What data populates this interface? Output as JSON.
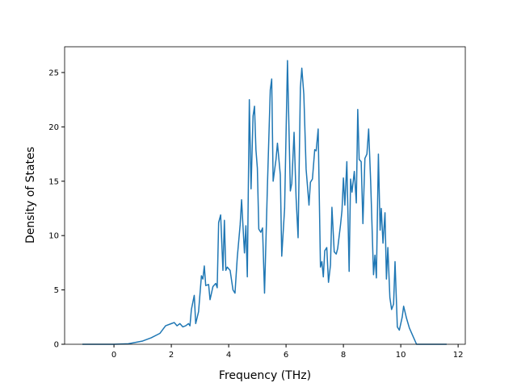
{
  "chart_data": {
    "type": "line",
    "xlabel": "Frequency (THz)",
    "ylabel": "Density of States",
    "x": [
      -1.1,
      0,
      0.5,
      1.0,
      1.3,
      1.6,
      1.8,
      2.0,
      2.1,
      2.2,
      2.3,
      2.4,
      2.5,
      2.6,
      2.65,
      2.7,
      2.8,
      2.85,
      2.95,
      3.05,
      3.1,
      3.15,
      3.2,
      3.3,
      3.35,
      3.45,
      3.55,
      3.6,
      3.65,
      3.72,
      3.8,
      3.85,
      3.9,
      3.95,
      4.05,
      4.15,
      4.22,
      4.3,
      4.4,
      4.45,
      4.5,
      4.55,
      4.6,
      4.65,
      4.72,
      4.78,
      4.85,
      4.9,
      4.95,
      5.0,
      5.05,
      5.12,
      5.18,
      5.25,
      5.35,
      5.45,
      5.5,
      5.55,
      5.65,
      5.7,
      5.8,
      5.85,
      5.95,
      6.05,
      6.15,
      6.2,
      6.28,
      6.35,
      6.42,
      6.5,
      6.55,
      6.62,
      6.7,
      6.8,
      6.85,
      6.92,
      7.0,
      7.05,
      7.12,
      7.2,
      7.25,
      7.3,
      7.35,
      7.42,
      7.48,
      7.55,
      7.6,
      7.68,
      7.75,
      7.8,
      7.9,
      7.95,
      8.0,
      8.05,
      8.12,
      8.2,
      8.25,
      8.3,
      8.38,
      8.45,
      8.5,
      8.55,
      8.62,
      8.68,
      8.75,
      8.82,
      8.88,
      8.95,
      9.05,
      9.1,
      9.15,
      9.22,
      9.28,
      9.32,
      9.38,
      9.45,
      9.5,
      9.55,
      9.62,
      9.68,
      9.75,
      9.8,
      9.88,
      9.95,
      10.05,
      10.1,
      10.2,
      10.3,
      10.45,
      10.55,
      11.0,
      11.6
    ],
    "series": [
      {
        "color": "#1f77b4",
        "values": [
          0,
          0,
          0.05,
          0.3,
          0.6,
          1.0,
          1.7,
          1.9,
          2.0,
          1.7,
          1.9,
          1.6,
          1.7,
          1.9,
          1.7,
          3.2,
          4.5,
          1.9,
          3.0,
          6.3,
          6.0,
          7.2,
          5.4,
          5.5,
          4.1,
          5.3,
          5.6,
          5.2,
          11.2,
          11.9,
          6.8,
          11.4,
          6.8,
          7.1,
          6.8,
          5.0,
          4.7,
          8.0,
          11.0,
          13.3,
          10.8,
          8.4,
          10.9,
          6.2,
          22.5,
          14.3,
          21.0,
          21.9,
          17.9,
          16.2,
          10.6,
          10.3,
          10.7,
          4.7,
          14.5,
          23.4,
          24.4,
          15.0,
          17.0,
          18.5,
          15.6,
          8.1,
          12.5,
          26.1,
          14.1,
          14.8,
          19.5,
          13.5,
          9.8,
          23.6,
          25.4,
          23.0,
          16.1,
          12.8,
          14.9,
          15.2,
          17.9,
          17.8,
          19.8,
          7.1,
          7.6,
          6.2,
          8.6,
          8.9,
          5.7,
          7.3,
          12.6,
          8.5,
          8.3,
          8.8,
          11.0,
          12.3,
          15.3,
          12.8,
          16.8,
          6.7,
          15.2,
          14.0,
          15.9,
          13.0,
          21.6,
          17.0,
          16.8,
          11.1,
          17.1,
          17.5,
          19.8,
          15.0,
          6.4,
          8.2,
          6.1,
          17.5,
          10.5,
          12.5,
          9.3,
          12.1,
          6.0,
          8.9,
          4.3,
          3.2,
          3.7,
          7.6,
          1.6,
          1.3,
          2.5,
          3.5,
          2.4,
          1.5,
          0.6,
          0,
          0,
          0
        ]
      }
    ],
    "xlim": [
      -1.72,
      12.25
    ],
    "ylim": [
      0,
      27.37
    ],
    "xticks": [
      0,
      2,
      4,
      6,
      8,
      10,
      12
    ],
    "yticks": [
      0,
      5,
      10,
      15,
      20,
      25
    ]
  }
}
